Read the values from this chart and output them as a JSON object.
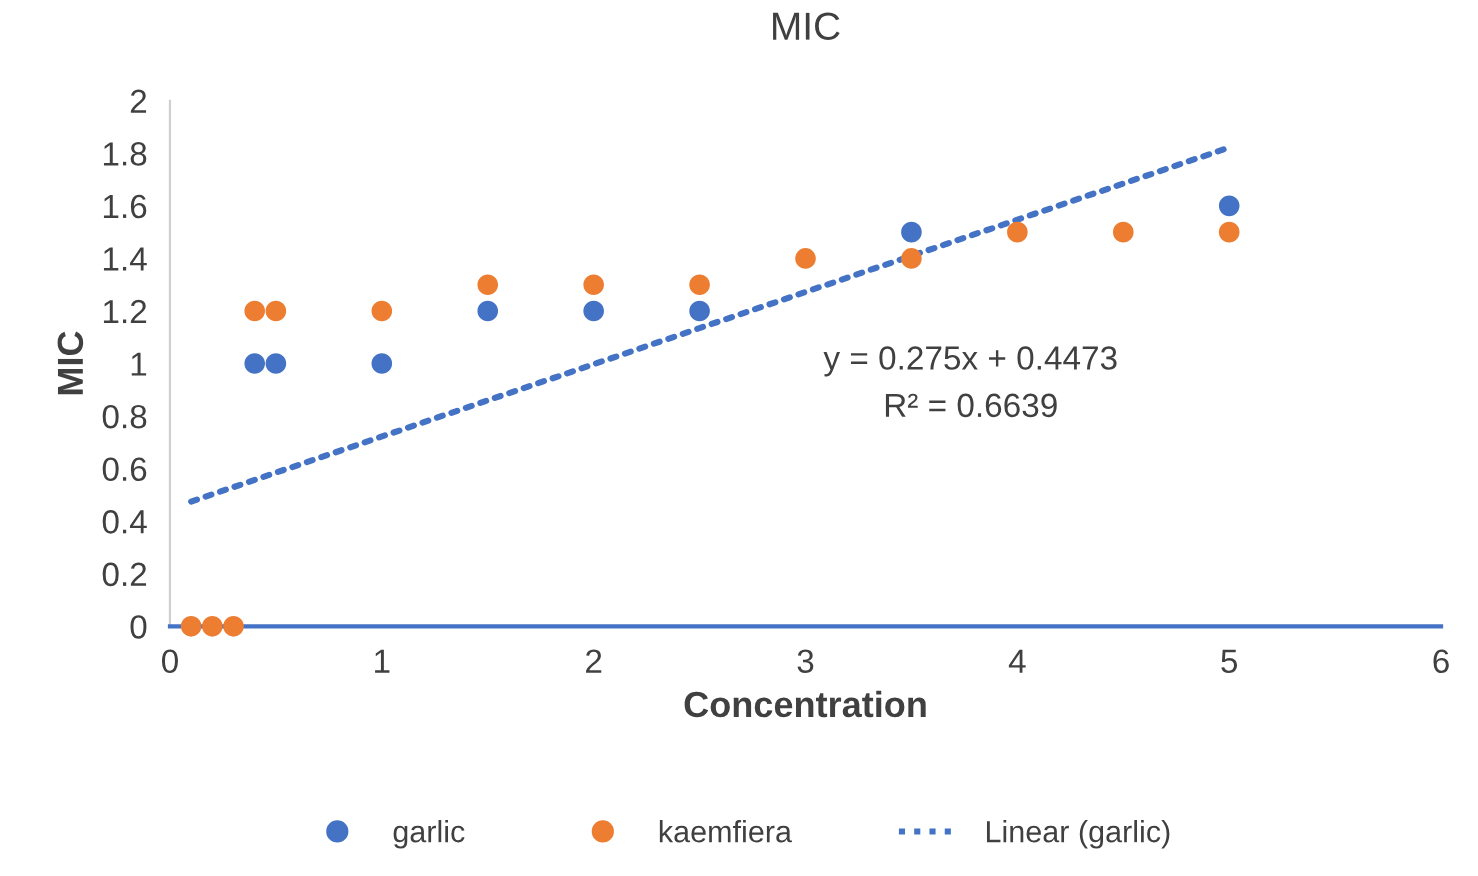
{
  "chart_data": {
    "type": "scatter",
    "title": "MIC",
    "xlabel": "Concentration",
    "ylabel": "MIC",
    "x": [
      0.1,
      0.2,
      0.3,
      0.4,
      0.5,
      1,
      1.5,
      2,
      2.5,
      3,
      3.5,
      4,
      4.5,
      5
    ],
    "series": [
      {
        "name": "garlic",
        "color": "#4472c4",
        "values": [
          null,
          null,
          null,
          1,
          1,
          1,
          1.2,
          1.2,
          1.2,
          null,
          1.5,
          null,
          null,
          1.6
        ]
      },
      {
        "name": "kaemfiera",
        "color": "#ed7d31",
        "values": [
          0,
          0,
          0,
          1.2,
          1.2,
          1.2,
          1.3,
          1.3,
          1.3,
          1.4,
          1.4,
          1.5,
          1.5,
          1.5
        ]
      },
      {
        "name": "Linear (garlic)",
        "type": "line",
        "line_style": "dotted",
        "marker": "none",
        "color": "#4472c4",
        "x": [
          0.1,
          5
        ],
        "values": [
          0.4748,
          1.8223
        ]
      }
    ],
    "xlim": [
      0,
      6
    ],
    "xticks": [
      0,
      1,
      2,
      3,
      4,
      5,
      6
    ],
    "ylim": [
      0,
      2
    ],
    "yticks": [
      0,
      {
        "value": 0.2,
        "label": "0.2"
      },
      {
        "value": 0.4,
        "label": "0.4"
      },
      {
        "value": 0.6,
        "label": "0.6"
      },
      {
        "value": 0.8,
        "label": "0.8"
      },
      1,
      {
        "value": 1.2,
        "label": "1.2"
      },
      {
        "value": 1.4,
        "label": "1.4"
      },
      {
        "value": 1.6,
        "label": "1.6"
      },
      {
        "value": 1.8,
        "label": "1.8"
      },
      2
    ],
    "annotations": [
      "y = 0.275x + 0.4473",
      "R² = 0.6639"
    ],
    "marker": "circle",
    "grid": false,
    "legend": "bottom"
  }
}
